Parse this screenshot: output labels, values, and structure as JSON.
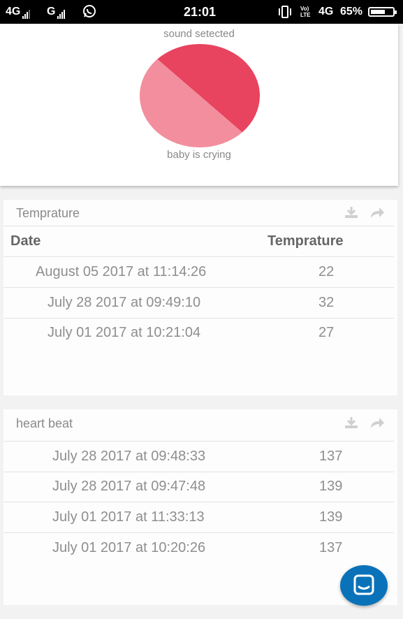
{
  "status_bar": {
    "network_1": "4G",
    "network_2": "G",
    "time": "21:01",
    "volte": "Vo) LTE",
    "network_3": "4G",
    "battery": "65%",
    "battery_level": 0.65
  },
  "sound_card": {
    "top_label": "sound setected",
    "bottom_label": "baby is crying"
  },
  "chart_data": {
    "type": "pie",
    "categories": [
      "sound setected",
      "baby is crying"
    ],
    "values": [
      50,
      50
    ],
    "colors": [
      "#e8435f",
      "#f28e9d"
    ]
  },
  "temperature_panel": {
    "title": "Temprature",
    "headers": {
      "date": "Date",
      "value": "Temprature"
    },
    "rows": [
      {
        "date": "August 05 2017 at 11:14:26",
        "value": "22"
      },
      {
        "date": "July 28 2017 at 09:49:10",
        "value": "32"
      },
      {
        "date": "July 01 2017 at 10:21:04",
        "value": "27"
      }
    ]
  },
  "heartbeat_panel": {
    "title": "heart beat",
    "rows": [
      {
        "date": "July 28 2017 at 09:48:33",
        "value": "137"
      },
      {
        "date": "July 28 2017 at 09:47:48",
        "value": "139"
      },
      {
        "date": "July 01 2017 at 11:33:13",
        "value": "139"
      },
      {
        "date": "July 01 2017 at 10:20:26",
        "value": "137"
      }
    ]
  }
}
